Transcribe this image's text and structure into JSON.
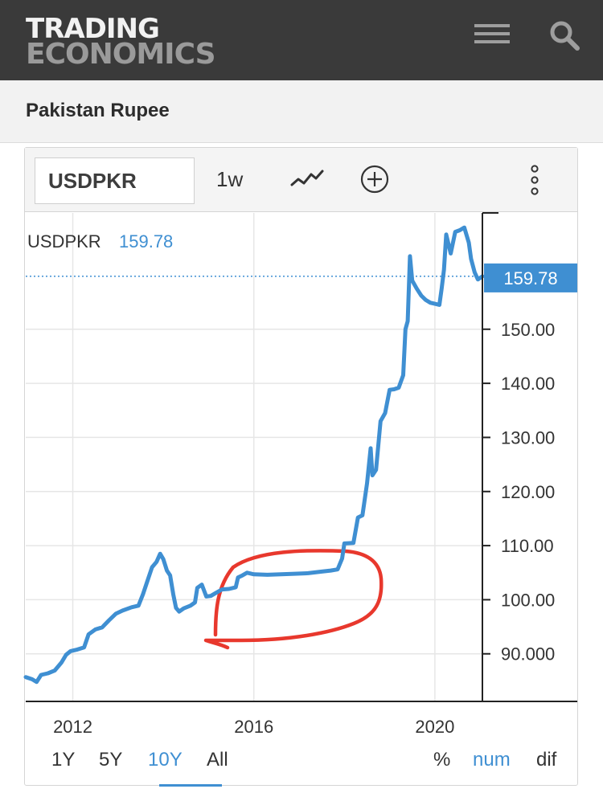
{
  "header": {
    "logo_line1": "TRADING",
    "logo_line2": "ECONOMICS",
    "menu_icon": "hamburger-icon",
    "search_icon": "search-icon"
  },
  "page": {
    "title": "Pakistan Rupee"
  },
  "toolbar": {
    "symbol_value": "USDPKR",
    "interval_label": "1w",
    "chart_type_icon": "line-chart-icon",
    "add_icon": "plus-circle-icon",
    "more_icon": "vertical-dots-icon"
  },
  "chart_data": {
    "type": "line",
    "legend_symbol": "USDPKR",
    "legend_value": "159.78",
    "last_value_label": "159.78",
    "last_value": 159.78,
    "ylim": [
      81.2,
      171.5
    ],
    "yticks": [
      {
        "value": 90,
        "label": "90.000"
      },
      {
        "value": 100,
        "label": "100.00"
      },
      {
        "value": 110,
        "label": "110.00"
      },
      {
        "value": 120,
        "label": "120.00"
      },
      {
        "value": 130,
        "label": "130.00"
      },
      {
        "value": 140,
        "label": "140.00"
      },
      {
        "value": 150,
        "label": "150.00"
      }
    ],
    "xlim": [
      2010.96,
      2021.05
    ],
    "xticks": [
      {
        "value": 2012,
        "label": "2012"
      },
      {
        "value": 2016,
        "label": "2016"
      },
      {
        "value": 2020,
        "label": "2020"
      }
    ],
    "grid": true,
    "line_color": "#3f8fd2",
    "annotation_color": "#e8382d",
    "series": [
      {
        "values": [
          [
            2010.96,
            85.7
          ],
          [
            2011.1,
            85.3
          ],
          [
            2011.2,
            84.8
          ],
          [
            2011.3,
            86.1
          ],
          [
            2011.45,
            86.4
          ],
          [
            2011.6,
            86.9
          ],
          [
            2011.75,
            88.4
          ],
          [
            2011.85,
            89.8
          ],
          [
            2011.95,
            90.5
          ],
          [
            2012.1,
            90.8
          ],
          [
            2012.25,
            91.2
          ],
          [
            2012.35,
            93.6
          ],
          [
            2012.5,
            94.5
          ],
          [
            2012.65,
            94.9
          ],
          [
            2012.8,
            96.2
          ],
          [
            2012.95,
            97.4
          ],
          [
            2013.1,
            98.0
          ],
          [
            2013.3,
            98.6
          ],
          [
            2013.45,
            98.9
          ],
          [
            2013.55,
            101.0
          ],
          [
            2013.65,
            103.5
          ],
          [
            2013.75,
            106.0
          ],
          [
            2013.85,
            107.0
          ],
          [
            2013.93,
            108.5
          ],
          [
            2014.0,
            107.5
          ],
          [
            2014.08,
            105.4
          ],
          [
            2014.15,
            104.5
          ],
          [
            2014.22,
            101.0
          ],
          [
            2014.28,
            98.5
          ],
          [
            2014.35,
            97.8
          ],
          [
            2014.45,
            98.4
          ],
          [
            2014.6,
            98.9
          ],
          [
            2014.7,
            99.5
          ],
          [
            2014.75,
            102.2
          ],
          [
            2014.85,
            102.8
          ],
          [
            2014.95,
            100.6
          ],
          [
            2015.05,
            100.7
          ],
          [
            2015.15,
            101.2
          ],
          [
            2015.3,
            101.9
          ],
          [
            2015.45,
            102.0
          ],
          [
            2015.6,
            102.3
          ],
          [
            2015.65,
            104.1
          ],
          [
            2015.75,
            104.5
          ],
          [
            2015.85,
            105.0
          ],
          [
            2016.0,
            104.7
          ],
          [
            2016.3,
            104.6
          ],
          [
            2016.6,
            104.7
          ],
          [
            2016.9,
            104.8
          ],
          [
            2017.2,
            104.9
          ],
          [
            2017.5,
            105.2
          ],
          [
            2017.7,
            105.4
          ],
          [
            2017.85,
            105.6
          ],
          [
            2017.95,
            107.6
          ],
          [
            2018.0,
            110.4
          ],
          [
            2018.2,
            110.5
          ],
          [
            2018.3,
            115.2
          ],
          [
            2018.4,
            115.6
          ],
          [
            2018.5,
            121.5
          ],
          [
            2018.58,
            128.0
          ],
          [
            2018.62,
            123.0
          ],
          [
            2018.7,
            124.0
          ],
          [
            2018.8,
            133.0
          ],
          [
            2018.9,
            134.5
          ],
          [
            2019.0,
            138.8
          ],
          [
            2019.1,
            138.9
          ],
          [
            2019.2,
            139.2
          ],
          [
            2019.3,
            141.5
          ],
          [
            2019.35,
            150.0
          ],
          [
            2019.4,
            151.5
          ],
          [
            2019.45,
            163.5
          ],
          [
            2019.5,
            159.0
          ],
          [
            2019.6,
            157.5
          ],
          [
            2019.7,
            156.2
          ],
          [
            2019.8,
            155.4
          ],
          [
            2019.9,
            154.9
          ],
          [
            2020.0,
            154.7
          ],
          [
            2020.1,
            154.5
          ],
          [
            2020.15,
            157.5
          ],
          [
            2020.2,
            161.0
          ],
          [
            2020.25,
            167.5
          ],
          [
            2020.35,
            164.0
          ],
          [
            2020.45,
            168.0
          ],
          [
            2020.55,
            168.3
          ],
          [
            2020.65,
            168.8
          ],
          [
            2020.75,
            166.0
          ],
          [
            2020.8,
            163.0
          ],
          [
            2020.88,
            160.5
          ],
          [
            2020.95,
            159.2
          ],
          [
            2021.05,
            159.78
          ]
        ]
      }
    ]
  },
  "range_tabs": {
    "t1": "1Y",
    "t2": "5Y",
    "t3": "10Y",
    "t4": "All",
    "active": "10Y"
  },
  "mode_tabs": {
    "m1": "%",
    "m2": "num",
    "m3": "dif",
    "active": "num"
  }
}
